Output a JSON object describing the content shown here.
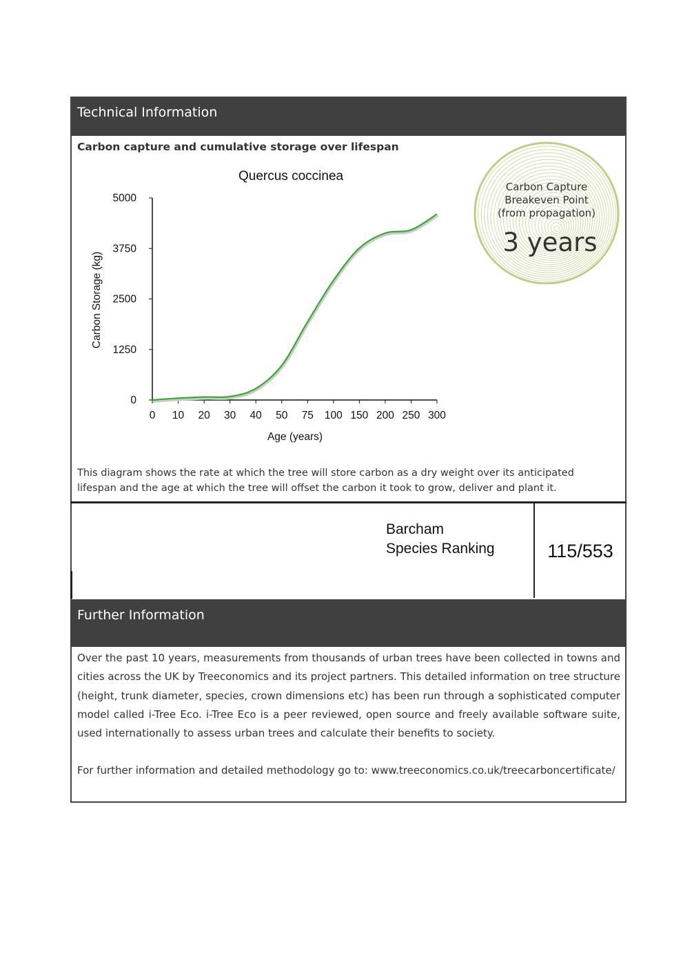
{
  "technical": {
    "header": "Technical Information",
    "subtitle": "Carbon capture and cumulative storage over lifespan",
    "caption": "This diagram shows the rate at which the tree will store carbon as a dry weight over its anticipated lifespan and the age at which the tree will offset the carbon it took to grow, deliver and plant it."
  },
  "breakeven": {
    "line1": "Carbon Capture",
    "line2": "Breakeven Point",
    "line3": "(from propagation)",
    "value": "3 years",
    "ring_color": "#c2cc86"
  },
  "ranking": {
    "line1": "Barcham",
    "line2": "Species Ranking",
    "value": "115/553"
  },
  "further": {
    "header": "Further Information",
    "paragraph": "Over the past 10 years, measurements from thousands of urban trees have been collected in towns and cities across the UK by Treeconomics and its project partners. This detailed information on tree structure (height, trunk diameter, species, crown dimensions etc) has been run through a sophisticated computer model called i-Tree Eco. i-Tree Eco is a peer reviewed, open source and freely available software suite, used internationally to assess urban trees and calculate their benefits to society.",
    "link_line": "For further information and detailed methodology go to: www.treeconomics.co.uk/treecarboncertificate/"
  },
  "colors": {
    "header_bg": "#404040",
    "line": "#3aa832"
  },
  "chart_data": {
    "type": "line",
    "title": "Quercus coccinea",
    "xlabel": "Age (years)",
    "ylabel": "Carbon Storage (kg)",
    "categories": [
      "0",
      "10",
      "20",
      "30",
      "40",
      "50",
      "75",
      "100",
      "150",
      "200",
      "250",
      "300"
    ],
    "values": [
      0,
      45,
      75,
      85,
      285,
      855,
      1935,
      2960,
      3760,
      4130,
      4210,
      4600
    ],
    "yticks": [
      "0",
      "1250",
      "2500",
      "3750",
      "5000"
    ],
    "ylim": [
      0,
      5000
    ],
    "grid": false,
    "legend": "none"
  }
}
